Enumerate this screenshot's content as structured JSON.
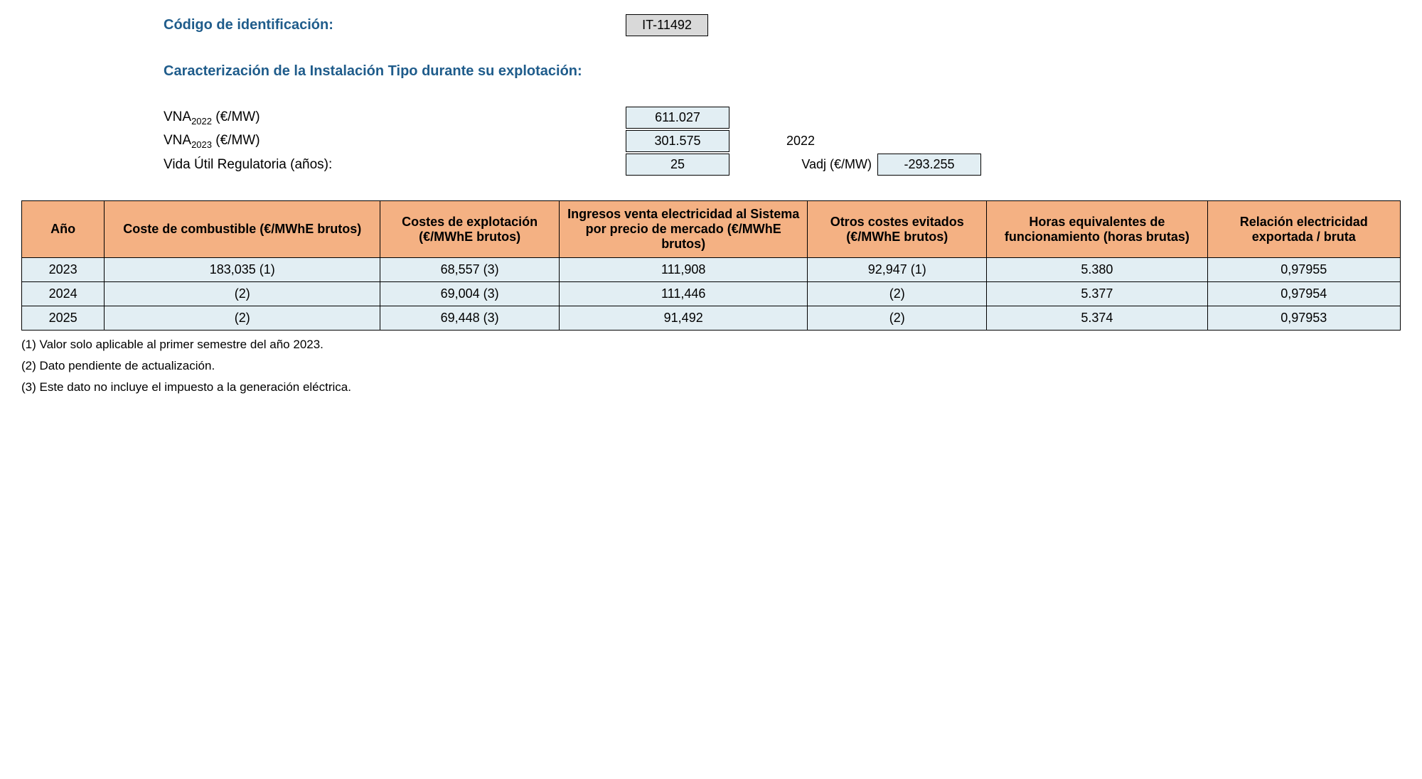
{
  "header": {
    "id_label": "Código de identificación:",
    "id_value": "IT-11492",
    "section_title": "Caracterización de la Instalación Tipo durante su explotación:"
  },
  "params": {
    "vna2022_label_pre": "VNA",
    "vna2022_label_sub": "2022",
    "vna2022_label_post": " (€/MW)",
    "vna2022_value": "611.027",
    "vna2023_label_pre": "VNA",
    "vna2023_label_sub": "2023",
    "vna2023_label_post": " (€/MW)",
    "vna2023_value": "301.575",
    "year_right": "2022",
    "vida_label": "Vida Útil Regulatoria (años):",
    "vida_value": "25",
    "vadj_label": "Vadj (€/MW)",
    "vadj_value": "-293.255"
  },
  "table": {
    "columns": [
      "Año",
      "Coste de combustible (€/MWhE brutos)",
      "Costes de explotación (€/MWhE brutos)",
      "Ingresos venta electricidad al Sistema por precio de mercado (€/MWhE brutos)",
      "Otros costes evitados (€/MWhE brutos)",
      "Horas equivalentes de funcionamiento (horas brutas)",
      "Relación electricidad exportada / bruta"
    ],
    "col_widths": [
      "6%",
      "20%",
      "13%",
      "18%",
      "13%",
      "16%",
      "14%"
    ],
    "rows": [
      [
        "2023",
        "183,035 (1)",
        "68,557 (3)",
        "111,908",
        "92,947 (1)",
        "5.380",
        "0,97955"
      ],
      [
        "2024",
        "(2)",
        "69,004 (3)",
        "111,446",
        "(2)",
        "5.377",
        "0,97954"
      ],
      [
        "2025",
        "(2)",
        "69,448 (3)",
        "91,492",
        "(2)",
        "5.374",
        "0,97953"
      ]
    ]
  },
  "footnotes": [
    "(1) Valor solo aplicable al primer semestre del año 2023.",
    "(2) Dato pendiente de actualización.",
    "(3) Este dato no incluye el impuesto a la generación eléctrica."
  ]
}
